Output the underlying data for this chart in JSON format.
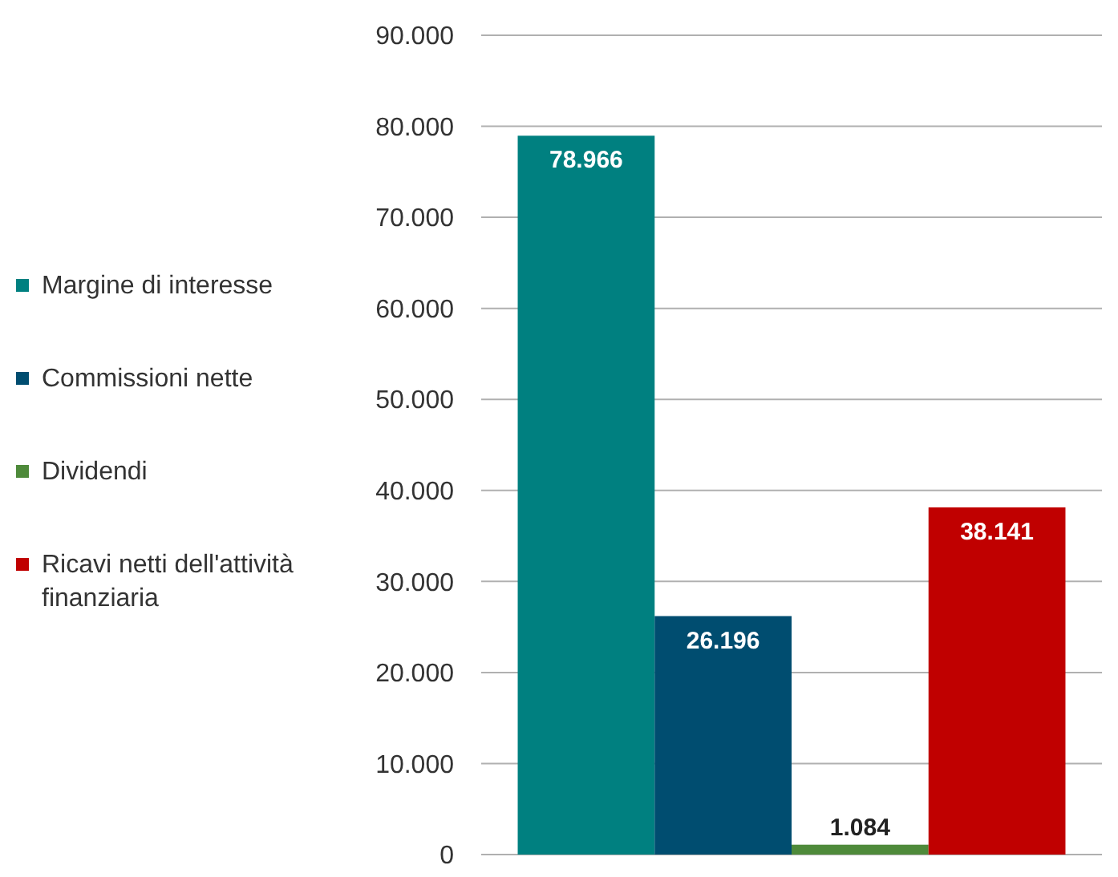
{
  "chart_data": {
    "type": "bar",
    "categories": [
      null
    ],
    "series": [
      {
        "name": "Margine di interesse",
        "color": "#008080",
        "values": [
          78966
        ],
        "value_labels": [
          "78.966"
        ]
      },
      {
        "name": "Commissioni nette",
        "color": "#004d70",
        "values": [
          26196
        ],
        "value_labels": [
          "26.196"
        ]
      },
      {
        "name": "Dividendi",
        "color": "#4e8a3a",
        "values": [
          1084
        ],
        "value_labels": [
          "1.084"
        ]
      },
      {
        "name": "Ricavi netti dell'attività finanziaria",
        "color": "#c00000",
        "values": [
          38141
        ],
        "value_labels": [
          "38.141"
        ]
      }
    ],
    "ylim": [
      0,
      90000
    ],
    "yticks": [
      {
        "value": 0,
        "label": "0"
      },
      {
        "value": 10000,
        "label": "10.000"
      },
      {
        "value": 20000,
        "label": "20.000"
      },
      {
        "value": 30000,
        "label": "30.000"
      },
      {
        "value": 40000,
        "label": "40.000"
      },
      {
        "value": 50000,
        "label": "50.000"
      },
      {
        "value": 60000,
        "label": "60.000"
      },
      {
        "value": 70000,
        "label": "70.000"
      },
      {
        "value": 80000,
        "label": "80.000"
      },
      {
        "value": 90000,
        "label": "90.000"
      }
    ],
    "grid": "y",
    "legend": "left"
  }
}
